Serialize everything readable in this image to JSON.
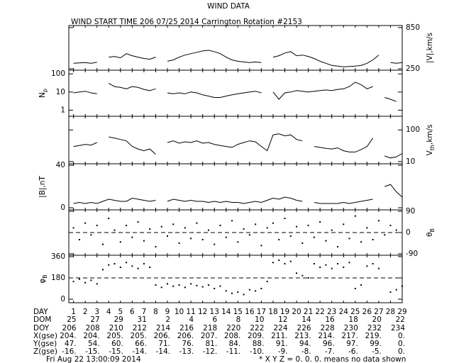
{
  "title": "WIND DATA",
  "subtitle": "WIND START TIME 206 07/25 2014 Carrington Rotation #2153",
  "chart_data": [
    {
      "type": "line",
      "label": "|V|,km/s",
      "label_side": "right",
      "xlim": [
        0.6,
        29
      ],
      "ylim": [
        230,
        880
      ],
      "yticks": [
        250,
        850
      ],
      "log": false,
      "color": "#000000",
      "x": [
        1,
        1.5,
        2,
        2.5,
        3,
        3.5,
        4,
        4.5,
        5,
        5.5,
        6,
        6.5,
        7,
        7.5,
        8,
        8.5,
        9,
        9.5,
        10,
        10.5,
        11,
        11.5,
        12,
        12.5,
        13,
        13.5,
        14,
        14.5,
        15,
        15.5,
        16,
        16.5,
        17,
        17.5,
        18,
        18.5,
        19,
        19.5,
        20,
        20.5,
        21,
        21.5,
        22,
        22.5,
        23,
        23.5,
        24,
        24.5,
        25,
        25.5,
        26,
        26.5,
        27,
        27.5,
        28,
        28.5,
        29
      ],
      "values": [
        330,
        335,
        340,
        330,
        345,
        null,
        420,
        430,
        410,
        470,
        440,
        420,
        400,
        390,
        420,
        null,
        360,
        380,
        420,
        450,
        470,
        490,
        510,
        520,
        500,
        470,
        420,
        380,
        360,
        350,
        340,
        350,
        340,
        null,
        420,
        440,
        480,
        500,
        440,
        450,
        430,
        400,
        360,
        330,
        300,
        290,
        280,
        285,
        290,
        300,
        330,
        380,
        450,
        null,
        340,
        330,
        340
      ]
    },
    {
      "type": "line",
      "label": "N",
      "label_sub": "p",
      "label_side": "left",
      "xlim": [
        0.6,
        29
      ],
      "ylim": [
        0.46,
        160
      ],
      "yticks": [
        1,
        10,
        100
      ],
      "log": true,
      "color": "#000000",
      "x": [
        1,
        1.5,
        2,
        2.5,
        3,
        3.5,
        4,
        4.5,
        5,
        5.5,
        6,
        6.5,
        7,
        7.5,
        8,
        8.5,
        9,
        9.5,
        10,
        10.5,
        11,
        11.5,
        12,
        12.5,
        13,
        13.5,
        14,
        14.5,
        15,
        15.5,
        16,
        16.5,
        17,
        17.5,
        18,
        18.5,
        19,
        19.5,
        20,
        20.5,
        21,
        21.5,
        22,
        22.5,
        23,
        23.5,
        24,
        24.5,
        25,
        25.5,
        26,
        26.5,
        27,
        27.5,
        28,
        28.5,
        29
      ],
      "values": [
        9,
        10,
        11,
        9,
        8,
        null,
        30,
        20,
        18,
        15,
        20,
        18,
        14,
        12,
        15,
        null,
        9,
        8,
        9,
        8,
        10,
        9,
        7,
        6,
        5,
        5,
        6,
        7,
        8,
        9,
        10,
        11,
        9,
        null,
        10,
        4,
        9,
        10,
        12,
        11,
        10,
        11,
        12,
        13,
        12,
        14,
        15,
        20,
        35,
        25,
        15,
        20,
        null,
        5,
        4,
        3,
        null
      ]
    },
    {
      "type": "line",
      "label": "V",
      "label_sub": "th",
      "label_tail": ",km/s",
      "label_side": "right",
      "xlim": [
        0.6,
        29
      ],
      "ylim": [
        8.5,
        270
      ],
      "yticks": [
        10,
        100
      ],
      "log": true,
      "color": "#000000",
      "x": [
        1,
        1.5,
        2,
        2.5,
        3,
        3.5,
        4,
        4.5,
        5,
        5.5,
        6,
        6.5,
        7,
        7.5,
        8,
        8.5,
        9,
        9.5,
        10,
        10.5,
        11,
        11.5,
        12,
        12.5,
        13,
        13.5,
        14,
        14.5,
        15,
        15.5,
        16,
        16.5,
        17,
        17.5,
        18,
        18.5,
        19,
        19.5,
        20,
        20.5,
        21,
        21.5,
        22,
        22.5,
        23,
        23.5,
        24,
        24.5,
        25,
        25.5,
        26,
        26.5,
        27,
        27.5,
        28,
        28.5,
        29
      ],
      "values": [
        30,
        32,
        35,
        33,
        40,
        null,
        60,
        55,
        50,
        45,
        30,
        25,
        22,
        25,
        17,
        null,
        40,
        45,
        38,
        42,
        40,
        45,
        38,
        40,
        35,
        32,
        30,
        28,
        35,
        40,
        45,
        42,
        30,
        22,
        70,
        75,
        65,
        70,
        50,
        45,
        null,
        30,
        28,
        26,
        25,
        27,
        22,
        20,
        20,
        24,
        30,
        55,
        null,
        15,
        13,
        14,
        18
      ]
    },
    {
      "type": "line",
      "label": "|B|,nT",
      "label_side": "left",
      "xlim": [
        0.6,
        29
      ],
      "ylim": [
        -2,
        41.4
      ],
      "yticks": [
        0,
        40
      ],
      "log": false,
      "color": "#000000",
      "x": [
        1,
        1.5,
        2,
        2.5,
        3,
        3.5,
        4,
        4.5,
        5,
        5.5,
        6,
        6.5,
        7,
        7.5,
        8,
        8.5,
        9,
        9.5,
        10,
        10.5,
        11,
        11.5,
        12,
        12.5,
        13,
        13.5,
        14,
        14.5,
        15,
        15.5,
        16,
        16.5,
        17,
        17.5,
        18,
        18.5,
        19,
        19.5,
        20,
        20.5,
        21,
        21.5,
        22,
        22.5,
        23,
        23.5,
        24,
        24.5,
        25,
        25.5,
        26,
        26.5,
        27,
        27.5,
        28,
        28.5,
        29
      ],
      "values": [
        4,
        5,
        4,
        5,
        4,
        6,
        8,
        7,
        6,
        6,
        9,
        8,
        7,
        6,
        7,
        null,
        6,
        8,
        7,
        6,
        7,
        6,
        6,
        5,
        6,
        5,
        6,
        5,
        5,
        4,
        5,
        6,
        5,
        7,
        9,
        8,
        10,
        9,
        7,
        6,
        null,
        5,
        4,
        4,
        4,
        4,
        5,
        4,
        5,
        6,
        7,
        8,
        null,
        20,
        22,
        15,
        10
      ]
    },
    {
      "type": "scatter",
      "label": "θ",
      "label_sub": "B",
      "label_side": "right",
      "xlim": [
        0.6,
        29
      ],
      "ylim": [
        -96,
        96
      ],
      "yticks": [
        -90,
        0,
        90
      ],
      "log": false,
      "dashed_line": 0,
      "color": "#000000",
      "x": [
        1,
        1.5,
        2,
        2.5,
        3,
        3.5,
        4,
        4.5,
        5,
        5.5,
        6,
        6.5,
        7,
        7.5,
        8,
        8.5,
        9,
        9.5,
        10,
        10.5,
        11,
        11.5,
        12,
        12.5,
        13,
        13.5,
        14,
        14.5,
        15,
        15.5,
        16,
        16.5,
        17,
        17.5,
        18,
        18.5,
        19,
        19.5,
        20,
        20.5,
        21,
        21.5,
        22,
        22.5,
        23,
        23.5,
        24,
        24.5,
        25,
        25.5,
        26,
        26.5,
        27,
        27.5,
        28,
        28.5,
        29
      ],
      "values": [
        20,
        -30,
        40,
        -10,
        30,
        -50,
        60,
        10,
        -40,
        30,
        -20,
        45,
        -35,
        15,
        -60,
        25,
        -15,
        35,
        -45,
        20,
        -25,
        40,
        -30,
        10,
        -50,
        30,
        -20,
        50,
        -40,
        15,
        -10,
        35,
        -55,
        20,
        40,
        -30,
        60,
        -15,
        25,
        -45,
        30,
        -20,
        45,
        -35,
        10,
        -60,
        35,
        -25,
        70,
        -40,
        20,
        -30,
        50,
        -10,
        30,
        10,
        null
      ]
    },
    {
      "type": "scatter",
      "label": "φ",
      "label_sub": "B",
      "label_side": "left",
      "xlim": [
        0.6,
        29
      ],
      "ylim": [
        -30,
        372
      ],
      "yticks": [
        0,
        180,
        360
      ],
      "log": false,
      "dashed_line": 180,
      "color": "#000000",
      "x": [
        1,
        1.5,
        2,
        2.5,
        3,
        3.5,
        4,
        4.5,
        5,
        5.5,
        6,
        6.5,
        7,
        7.5,
        8,
        8.5,
        9,
        9.5,
        10,
        10.5,
        11,
        11.5,
        12,
        12.5,
        13,
        13.5,
        14,
        14.5,
        15,
        15.5,
        16,
        16.5,
        17,
        17.5,
        18,
        18.5,
        19,
        19.5,
        20,
        20.5,
        21,
        21.5,
        22,
        22.5,
        23,
        23.5,
        24,
        24.5,
        25,
        25.5,
        26,
        26.5,
        27,
        27.5,
        28,
        28.5,
        29
      ],
      "values": [
        150,
        170,
        140,
        160,
        130,
        250,
        290,
        300,
        270,
        310,
        280,
        260,
        300,
        270,
        120,
        100,
        130,
        110,
        120,
        100,
        130,
        115,
        105,
        120,
        90,
        110,
        70,
        50,
        60,
        40,
        80,
        70,
        90,
        150,
        310,
        330,
        300,
        320,
        220,
        200,
        180,
        300,
        270,
        290,
        260,
        300,
        270,
        310,
        90,
        120,
        280,
        300,
        260,
        null,
        60,
        80,
        110
      ]
    }
  ],
  "time_table": {
    "days": [
      1,
      2,
      3,
      4,
      5,
      6,
      7,
      8,
      9,
      10,
      11,
      12,
      13,
      14,
      15,
      16,
      17,
      18,
      19,
      20,
      21,
      22,
      23,
      24,
      25,
      26,
      27,
      28,
      29
    ],
    "day_label": "DAY",
    "rows": [
      {
        "label": "DOM",
        "cells": [
          "25",
          "27",
          "29",
          "31",
          "2",
          "4",
          "6",
          "8",
          "10",
          "12",
          "14",
          "16",
          "18",
          "20",
          "22"
        ]
      },
      {
        "label": "DOY",
        "cells": [
          "206",
          "208",
          "210",
          "212",
          "214",
          "216",
          "218",
          "220",
          "222",
          "224",
          "226",
          "228",
          "230",
          "232",
          "234"
        ]
      },
      {
        "label": "X(gse)",
        "cells": [
          "204.",
          "204.",
          "205.",
          "205.",
          "206.",
          "206.",
          "207.",
          "208.",
          "209.",
          "211.",
          "213.",
          "214.",
          "217.",
          "219.",
          "0."
        ]
      },
      {
        "label": "Y(gse)",
        "cells": [
          "47.",
          "54.",
          "60.",
          "66.",
          "71.",
          "76.",
          "81.",
          "84.",
          "88.",
          "91.",
          "94.",
          "96.",
          "97.",
          "99.",
          "0."
        ]
      },
      {
        "label": "Z(gse)",
        "cells": [
          "-16.",
          "-15.",
          "-15.",
          "-14.",
          "-14.",
          "-13.",
          "-12.",
          "-11.",
          "-10.",
          "-9.",
          "-8.",
          "-7.",
          "-6.",
          "-5.",
          "0."
        ]
      }
    ]
  },
  "footer_left": "Fri Aug 22 13:00:09 2014",
  "footer_right": "* X Y Z = 0. 0. 0. means no data shown"
}
